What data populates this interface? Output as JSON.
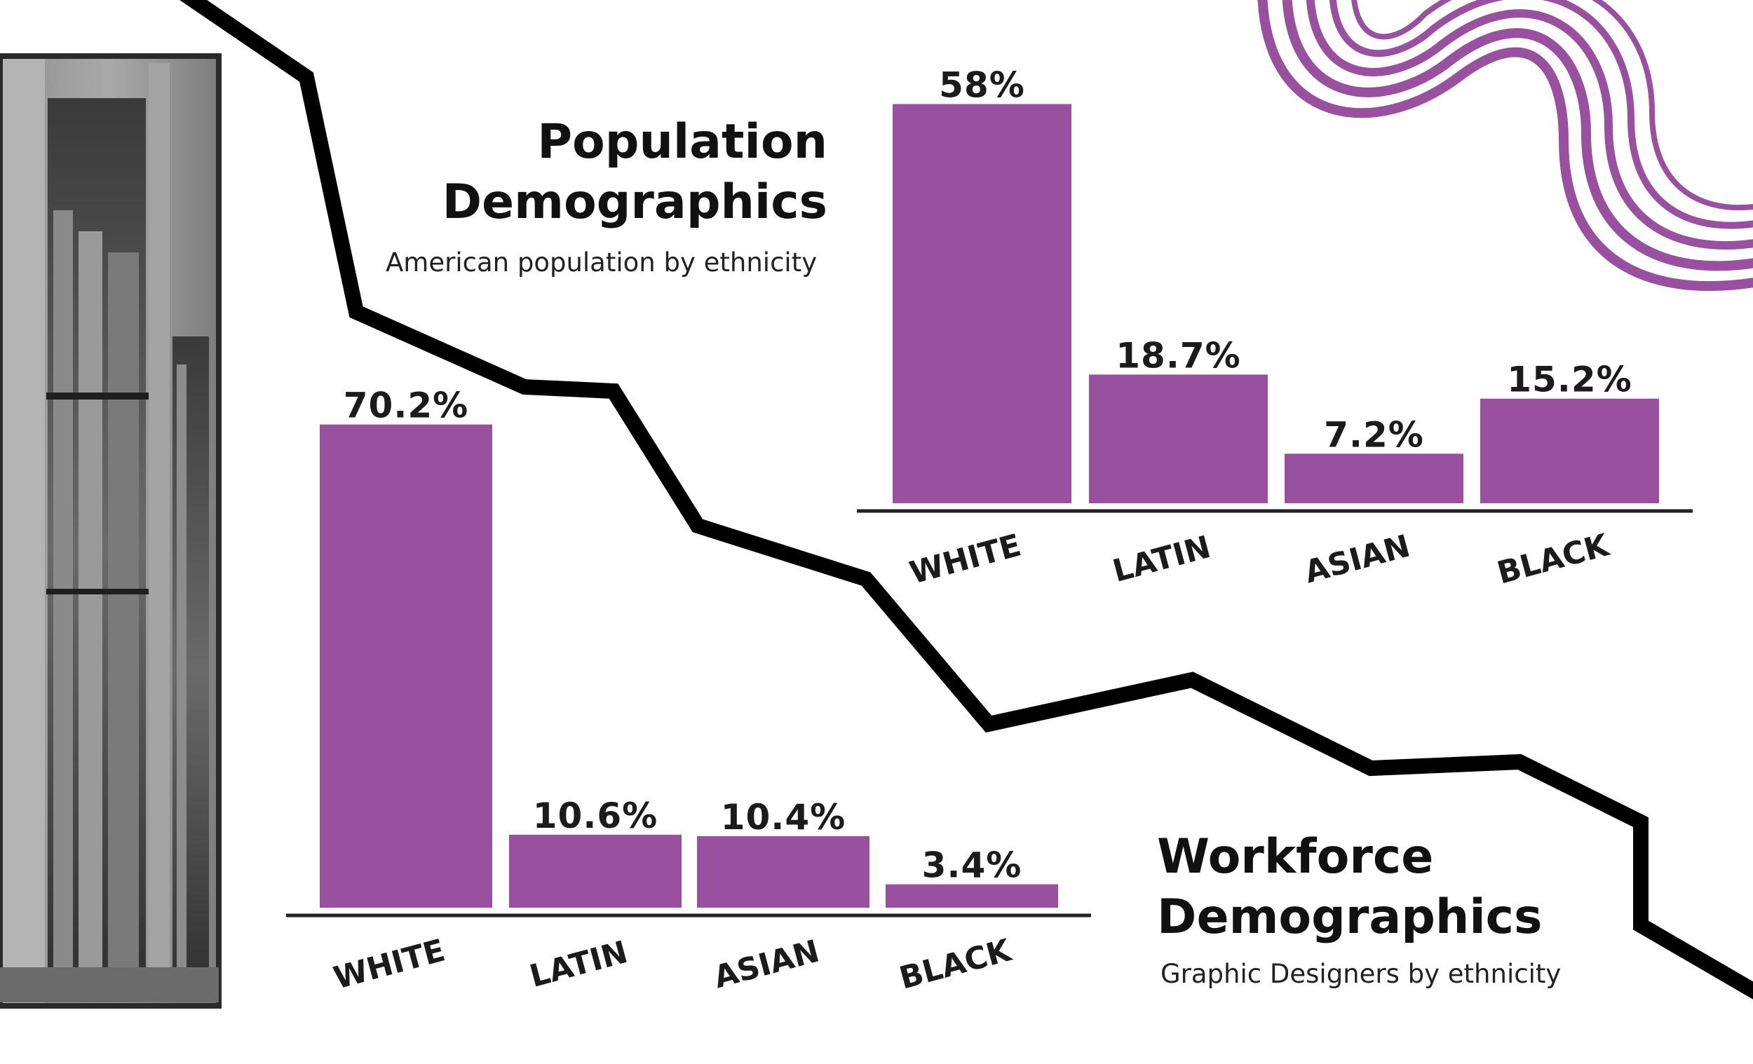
{
  "colors": {
    "bar": "#98509f",
    "line": "#000000",
    "axis": "#222222",
    "label": "#1b1b1b",
    "swirl": "#98509f"
  },
  "decor": {
    "photo": "grayscale-building-photo",
    "swirl": "purple-striped-ribbon"
  },
  "chart_data": [
    {
      "type": "bar",
      "title": "Population Demographics",
      "subtitle": "American population by ethnicity",
      "categories": [
        "WHITE",
        "LATIN",
        "ASIAN",
        "BLACK"
      ],
      "values": [
        58,
        18.7,
        7.2,
        15.2
      ],
      "value_labels": [
        "58%",
        "18.7%",
        "7.2%",
        "15.2%"
      ],
      "unit": "%",
      "grid": false,
      "legend": "none"
    },
    {
      "type": "bar",
      "title": "Workforce Demographics",
      "subtitle": "Graphic Designers by ethnicity",
      "categories": [
        "WHITE",
        "LATIN",
        "ASIAN",
        "BLACK"
      ],
      "values": [
        70.2,
        10.6,
        10.4,
        3.4
      ],
      "value_labels": [
        "70.2%",
        "10.6%",
        "10.4%",
        "3.4%"
      ],
      "unit": "%",
      "grid": false,
      "legend": "none"
    }
  ]
}
